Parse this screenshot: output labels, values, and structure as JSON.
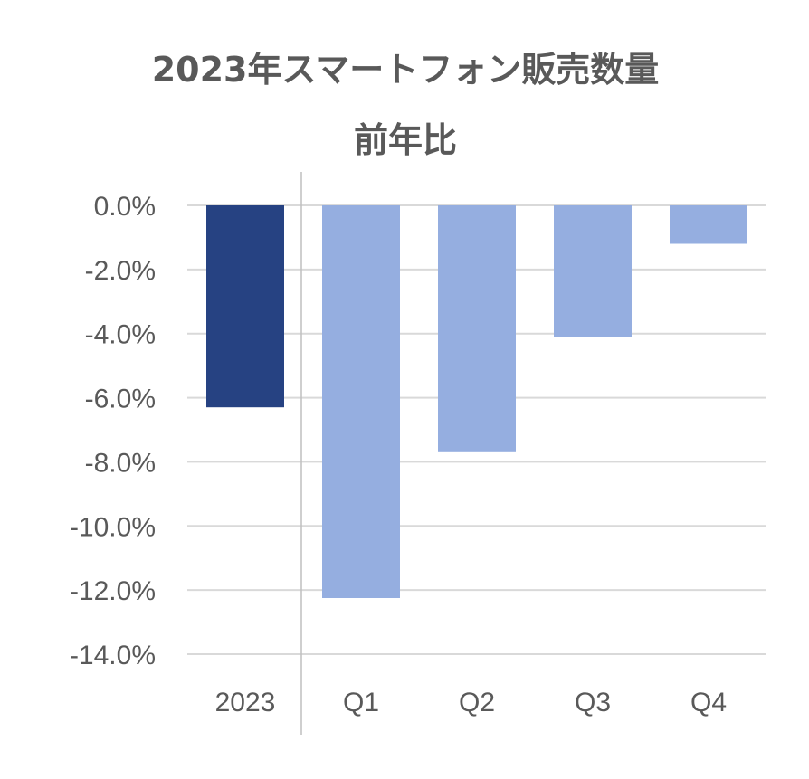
{
  "chart_data": {
    "type": "bar",
    "title": "2023年スマートフォン販売数量",
    "subtitle": "前年比",
    "categories": [
      "2023",
      "Q1",
      "Q2",
      "Q3",
      "Q4"
    ],
    "values": [
      -6.3,
      -12.25,
      -7.7,
      -4.1,
      -1.2
    ],
    "unit": "%",
    "ylim": [
      -14,
      0
    ],
    "yticks": [
      "0.0%",
      "-2.0%",
      "-4.0%",
      "-6.0%",
      "-8.0%",
      "-10.0%",
      "-12.0%",
      "-14.0%"
    ],
    "ytick_values": [
      0,
      -2,
      -4,
      -6,
      -8,
      -10,
      -12,
      -14
    ],
    "grid": true,
    "legend": "none",
    "colors": {
      "annual": "#264282",
      "quarterly": "#95AEE0",
      "grid": "#D9D9D9",
      "text": "#595959"
    }
  }
}
